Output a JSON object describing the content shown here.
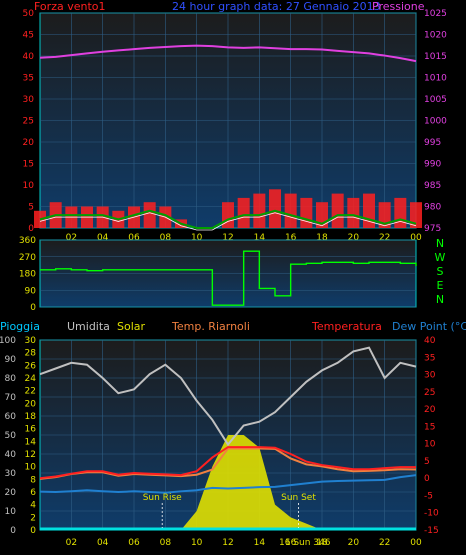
{
  "header": {
    "left": "Forza vento1",
    "center": "24 hour graph data: 27 Gennaio 2013",
    "right": "Pressione"
  },
  "colors": {
    "frame": "#00c8c8",
    "panel_bg_top": "#1c1c1c",
    "panel_bg_bottom": "#0f3c6a",
    "grid": "#2f5f86",
    "wind_gust": "#ff2020",
    "wind_avg": "#00a000",
    "wind_white": "#ffffff",
    "pressure": "#e040e0",
    "direction": "#00ff00",
    "humidity": "#c0c0c0",
    "solar": "#e0e000",
    "windchill": "#f08040",
    "temperature": "#ff2020",
    "dewpoint": "#2080d0",
    "rain": "#00e0e0",
    "title_blue": "#3050ff",
    "tick_yellow": "#e0e000"
  },
  "x_ticks": [
    "02",
    "04",
    "06",
    "08",
    "10",
    "12",
    "14",
    "16",
    "18",
    "20",
    "22",
    "00"
  ],
  "chart_data": [
    {
      "type": "line",
      "title": "24 hour graph data: 27 Gennaio 2013",
      "left_axis": {
        "label": "Forza vento1",
        "ticks": [
          "0",
          "5",
          "10",
          "15",
          "20",
          "25",
          "30",
          "35",
          "40",
          "45",
          "50"
        ],
        "ylim": [
          0,
          50
        ]
      },
      "right_axis": {
        "label": "Pressione",
        "ticks": [
          "975",
          "980",
          "985",
          "990",
          "995",
          "1000",
          "1005",
          "1010",
          "1015",
          "1020",
          "1025"
        ],
        "ylim": [
          975,
          1025
        ]
      },
      "x": [
        0,
        1,
        2,
        3,
        4,
        5,
        6,
        7,
        8,
        9,
        10,
        11,
        12,
        13,
        14,
        15,
        16,
        17,
        18,
        19,
        20,
        21,
        22,
        23,
        24
      ],
      "series": [
        {
          "name": "Pressione",
          "axis": "right",
          "values": [
            1014.6,
            1014.8,
            1015.2,
            1015.6,
            1016.0,
            1016.3,
            1016.6,
            1016.9,
            1017.1,
            1017.3,
            1017.4,
            1017.3,
            1017.0,
            1016.9,
            1017.0,
            1016.8,
            1016.6,
            1016.6,
            1016.5,
            1016.2,
            1015.9,
            1015.6,
            1015.1,
            1014.5,
            1013.8
          ]
        },
        {
          "name": "gust",
          "axis": "left",
          "values": [
            4,
            6,
            5,
            5,
            5,
            4,
            5,
            6,
            5,
            2,
            0,
            0,
            6,
            7,
            8,
            9,
            8,
            7,
            6,
            8,
            7,
            8,
            6,
            7,
            6
          ]
        },
        {
          "name": "avg",
          "axis": "left",
          "values": [
            2,
            3,
            3,
            3,
            3,
            2,
            3,
            4,
            3,
            1,
            0,
            0,
            2,
            3,
            3,
            4,
            3,
            2,
            1,
            3,
            3,
            2,
            1,
            2,
            1
          ]
        }
      ]
    },
    {
      "type": "line",
      "axis_ticks": [
        "360",
        "270",
        "180",
        "90",
        "0"
      ],
      "ylim": [
        0,
        360
      ],
      "compass": [
        "N",
        "W",
        "S",
        "E",
        "N"
      ],
      "x": [
        0,
        1,
        2,
        3,
        4,
        5,
        6,
        7,
        8,
        9,
        10,
        11,
        12,
        13,
        14,
        15,
        16,
        17,
        18,
        19,
        20,
        21,
        22,
        23,
        24
      ],
      "series": [
        {
          "name": "direction",
          "values": [
            200,
            205,
            200,
            195,
            200,
            200,
            200,
            200,
            200,
            200,
            200,
            10,
            10,
            300,
            100,
            60,
            230,
            235,
            240,
            240,
            235,
            240,
            240,
            235,
            220
          ]
        }
      ]
    },
    {
      "type": "line",
      "legend": [
        "Pioggia",
        "Umidita",
        "Solar",
        "Temp. Riarnoli",
        "Temperatura",
        "Dew Point (°C)"
      ],
      "axis_pioggia": {
        "ticks": [
          "0",
          "10",
          "20",
          "30",
          "40",
          "50",
          "60",
          "70",
          "80",
          "90",
          "100"
        ],
        "ylim": [
          0,
          100
        ]
      },
      "axis_solar": {
        "ticks": [
          "0",
          "2",
          "4",
          "6",
          "8",
          "10",
          "12",
          "14",
          "16",
          "18",
          "20",
          "22",
          "24",
          "26",
          "28",
          "30"
        ],
        "ylim": [
          0,
          30
        ]
      },
      "axis_temp": {
        "ticks": [
          "-15",
          "-10",
          "-5",
          "0",
          "5",
          "10",
          "15",
          "20",
          "25",
          "30",
          "35",
          "40"
        ],
        "ylim": [
          -15,
          40
        ]
      },
      "annotations": [
        "Sun Rise",
        "Sun Set",
        "16 Sun 346"
      ],
      "x": [
        0,
        1,
        2,
        3,
        4,
        5,
        6,
        7,
        8,
        9,
        10,
        11,
        12,
        13,
        14,
        15,
        16,
        17,
        18,
        19,
        20,
        21,
        22,
        23,
        24
      ],
      "series": [
        {
          "name": "Umidita",
          "axis": "pioggia",
          "values": [
            82,
            85,
            88,
            87,
            80,
            72,
            74,
            82,
            87,
            80,
            68,
            58,
            45,
            55,
            57,
            62,
            70,
            78,
            84,
            88,
            94,
            96,
            80,
            88,
            86
          ]
        },
        {
          "name": "Solar",
          "axis": "solar",
          "values": [
            0,
            0,
            0,
            0,
            0,
            0,
            0,
            0,
            0,
            0,
            3,
            10,
            15,
            15,
            13,
            4,
            2,
            1,
            0,
            0,
            0,
            0,
            0,
            0,
            0
          ]
        },
        {
          "name": "Temp. Riarnoli",
          "axis": "temp",
          "values": [
            -0.2,
            0.3,
            1.2,
            1.7,
            1.7,
            0.7,
            1.2,
            1.0,
            0.8,
            0.6,
            1.0,
            2.5,
            8.6,
            8.6,
            8.6,
            8.5,
            5.7,
            4.0,
            3.4,
            2.6,
            2.0,
            2.1,
            2.3,
            2.6,
            2.5
          ]
        },
        {
          "name": "Temperatura",
          "axis": "temp",
          "values": [
            0.0,
            0.5,
            1.3,
            2.0,
            2.0,
            1.0,
            1.5,
            1.3,
            1.1,
            0.9,
            2.0,
            6.0,
            9.0,
            9.0,
            9.0,
            8.8,
            7.0,
            4.8,
            3.8,
            3.2,
            2.6,
            2.6,
            2.9,
            3.2,
            3.2
          ]
        },
        {
          "name": "Dew Point (°C)",
          "axis": "temp",
          "values": [
            -3.9,
            -4.0,
            -3.8,
            -3.5,
            -3.8,
            -4.0,
            -3.8,
            -4.0,
            -4.2,
            -3.8,
            -3.5,
            -2.8,
            -3.0,
            -2.8,
            -2.6,
            -2.5,
            -2.0,
            -1.5,
            -1.0,
            -0.8,
            -0.7,
            -0.6,
            -0.5,
            0.3,
            0.9
          ]
        },
        {
          "name": "Pioggia",
          "axis": "pioggia",
          "values": [
            0,
            0,
            0,
            0,
            0,
            0,
            0,
            0,
            0,
            0,
            0,
            0,
            0,
            0,
            0,
            0,
            0,
            0,
            0,
            0,
            0,
            0,
            0,
            0,
            0
          ]
        }
      ]
    }
  ]
}
